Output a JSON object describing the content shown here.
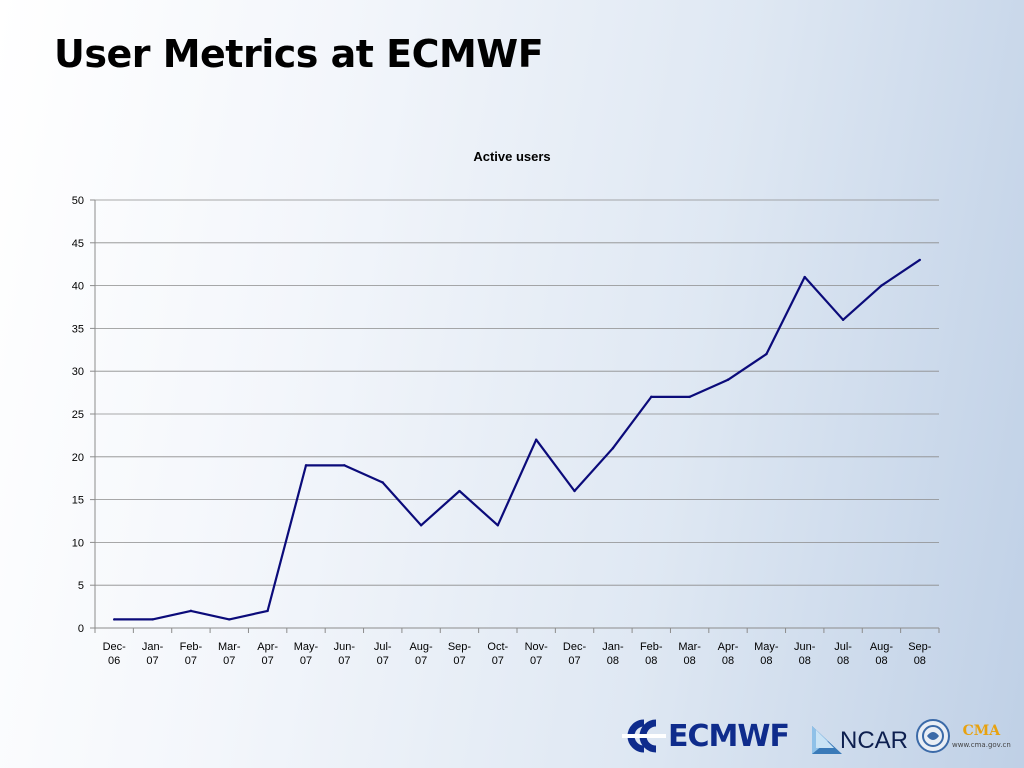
{
  "slide": {
    "title": "User Metrics at ECMWF"
  },
  "chart_data": {
    "type": "line",
    "title": "Active users",
    "xlabel": "",
    "ylabel": "",
    "categories": [
      "Dec-06",
      "Jan-07",
      "Feb-07",
      "Mar-07",
      "Apr-07",
      "May-07",
      "Jun-07",
      "Jul-07",
      "Aug-07",
      "Sep-07",
      "Oct-07",
      "Nov-07",
      "Dec-07",
      "Jan-08",
      "Feb-08",
      "Mar-08",
      "Apr-08",
      "May-08",
      "Jun-08",
      "Jul-08",
      "Aug-08",
      "Sep-08"
    ],
    "series": [
      {
        "values": [
          1,
          1,
          2,
          1,
          2,
          19,
          19,
          17,
          12,
          16,
          12,
          22,
          16,
          21,
          27,
          27,
          29,
          32,
          41,
          36,
          40,
          43
        ]
      }
    ],
    "ylim": [
      0,
      50
    ],
    "ytick_step": 5,
    "grid": true,
    "legend": "none",
    "line_color": "#0b0b7a"
  },
  "logos": {
    "ecmwf": "ECMWF",
    "ncar": "NCAR",
    "cma": "CMA",
    "cma_url": "www.cma.gov.cn"
  }
}
